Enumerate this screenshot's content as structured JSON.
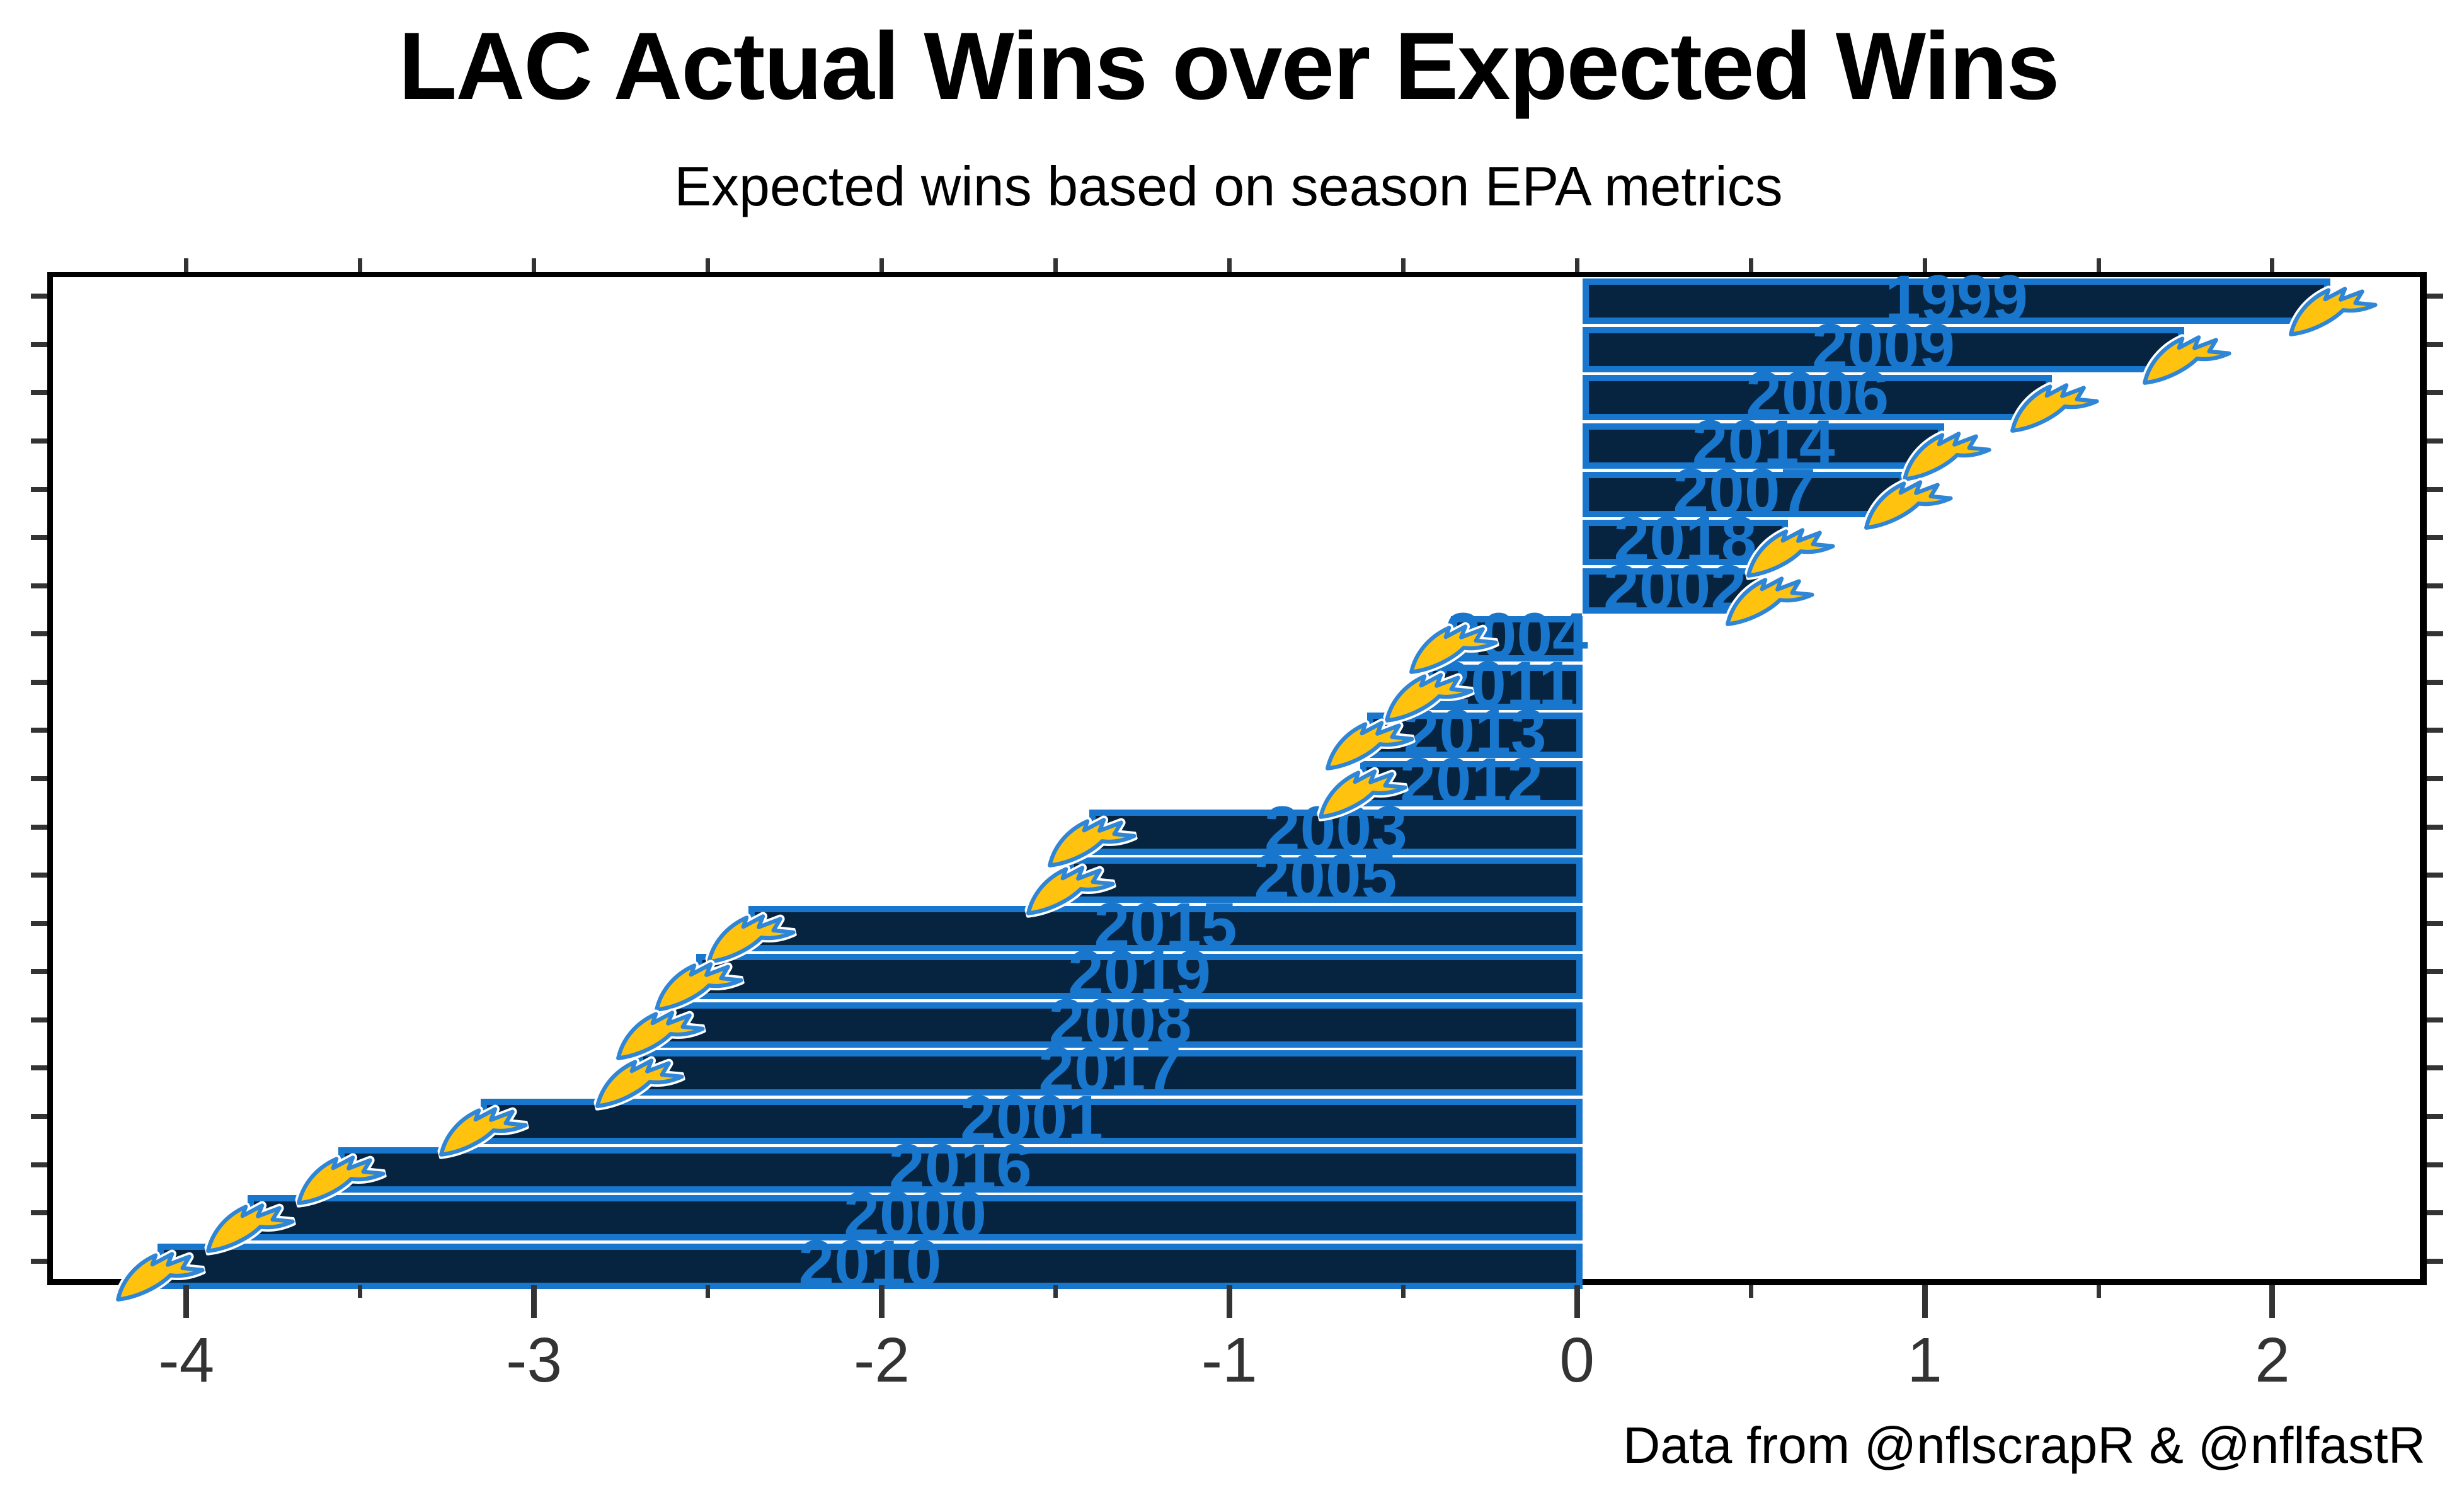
{
  "header": {
    "title": "LAC Actual Wins over Expected Wins",
    "subtitle": "Expected wins based on season EPA metrics"
  },
  "caption": "Data from @nflscrapR & @nflfastR",
  "colors": {
    "bar_fill": "#06243f",
    "bar_outline": "#1976cd",
    "year_label": "#1976cd",
    "bolt_gold": "#ffc20e",
    "bolt_blue": "#2f86d6",
    "bolt_white": "#ffffff",
    "axis": "#000000",
    "tick": "#333333",
    "background": "#ffffff"
  },
  "chart_data": {
    "type": "bar",
    "orientation": "horizontal",
    "title": "LAC Actual Wins over Expected Wins",
    "subtitle": "Expected wins based on season EPA metrics",
    "caption": "Data from @nflscrapR & @nflfastR",
    "xlabel": "",
    "ylabel": "",
    "categories": [
      "1999",
      "2009",
      "2006",
      "2014",
      "2007",
      "2018",
      "2002",
      "2004",
      "2011",
      "2013",
      "2012",
      "2003",
      "2005",
      "2015",
      "2019",
      "2008",
      "2017",
      "2001",
      "2016",
      "2000",
      "2010"
    ],
    "values": [
      2.15,
      1.73,
      1.35,
      1.04,
      0.93,
      0.59,
      0.53,
      -0.38,
      -0.45,
      -0.62,
      -0.64,
      -1.42,
      -1.48,
      -2.4,
      -2.55,
      -2.66,
      -2.72,
      -3.17,
      -3.58,
      -3.84,
      -4.1
    ],
    "bar_marker": "chargers-bolt-logo",
    "xlim": [
      -4.4,
      2.444
    ],
    "x_major_ticks": [
      -4,
      -3,
      -2,
      -1,
      0,
      1,
      2
    ],
    "x_major_labels": [
      "-4",
      "-3",
      "-2",
      "-1",
      "0",
      "1",
      "2"
    ],
    "x_minor_ticks": [
      -3.5,
      -2.5,
      -1.5,
      -0.5,
      0.5,
      1.5
    ],
    "top_axis_ticks_step": 0.5,
    "grid": false,
    "legend": "none",
    "panel_border": true
  }
}
